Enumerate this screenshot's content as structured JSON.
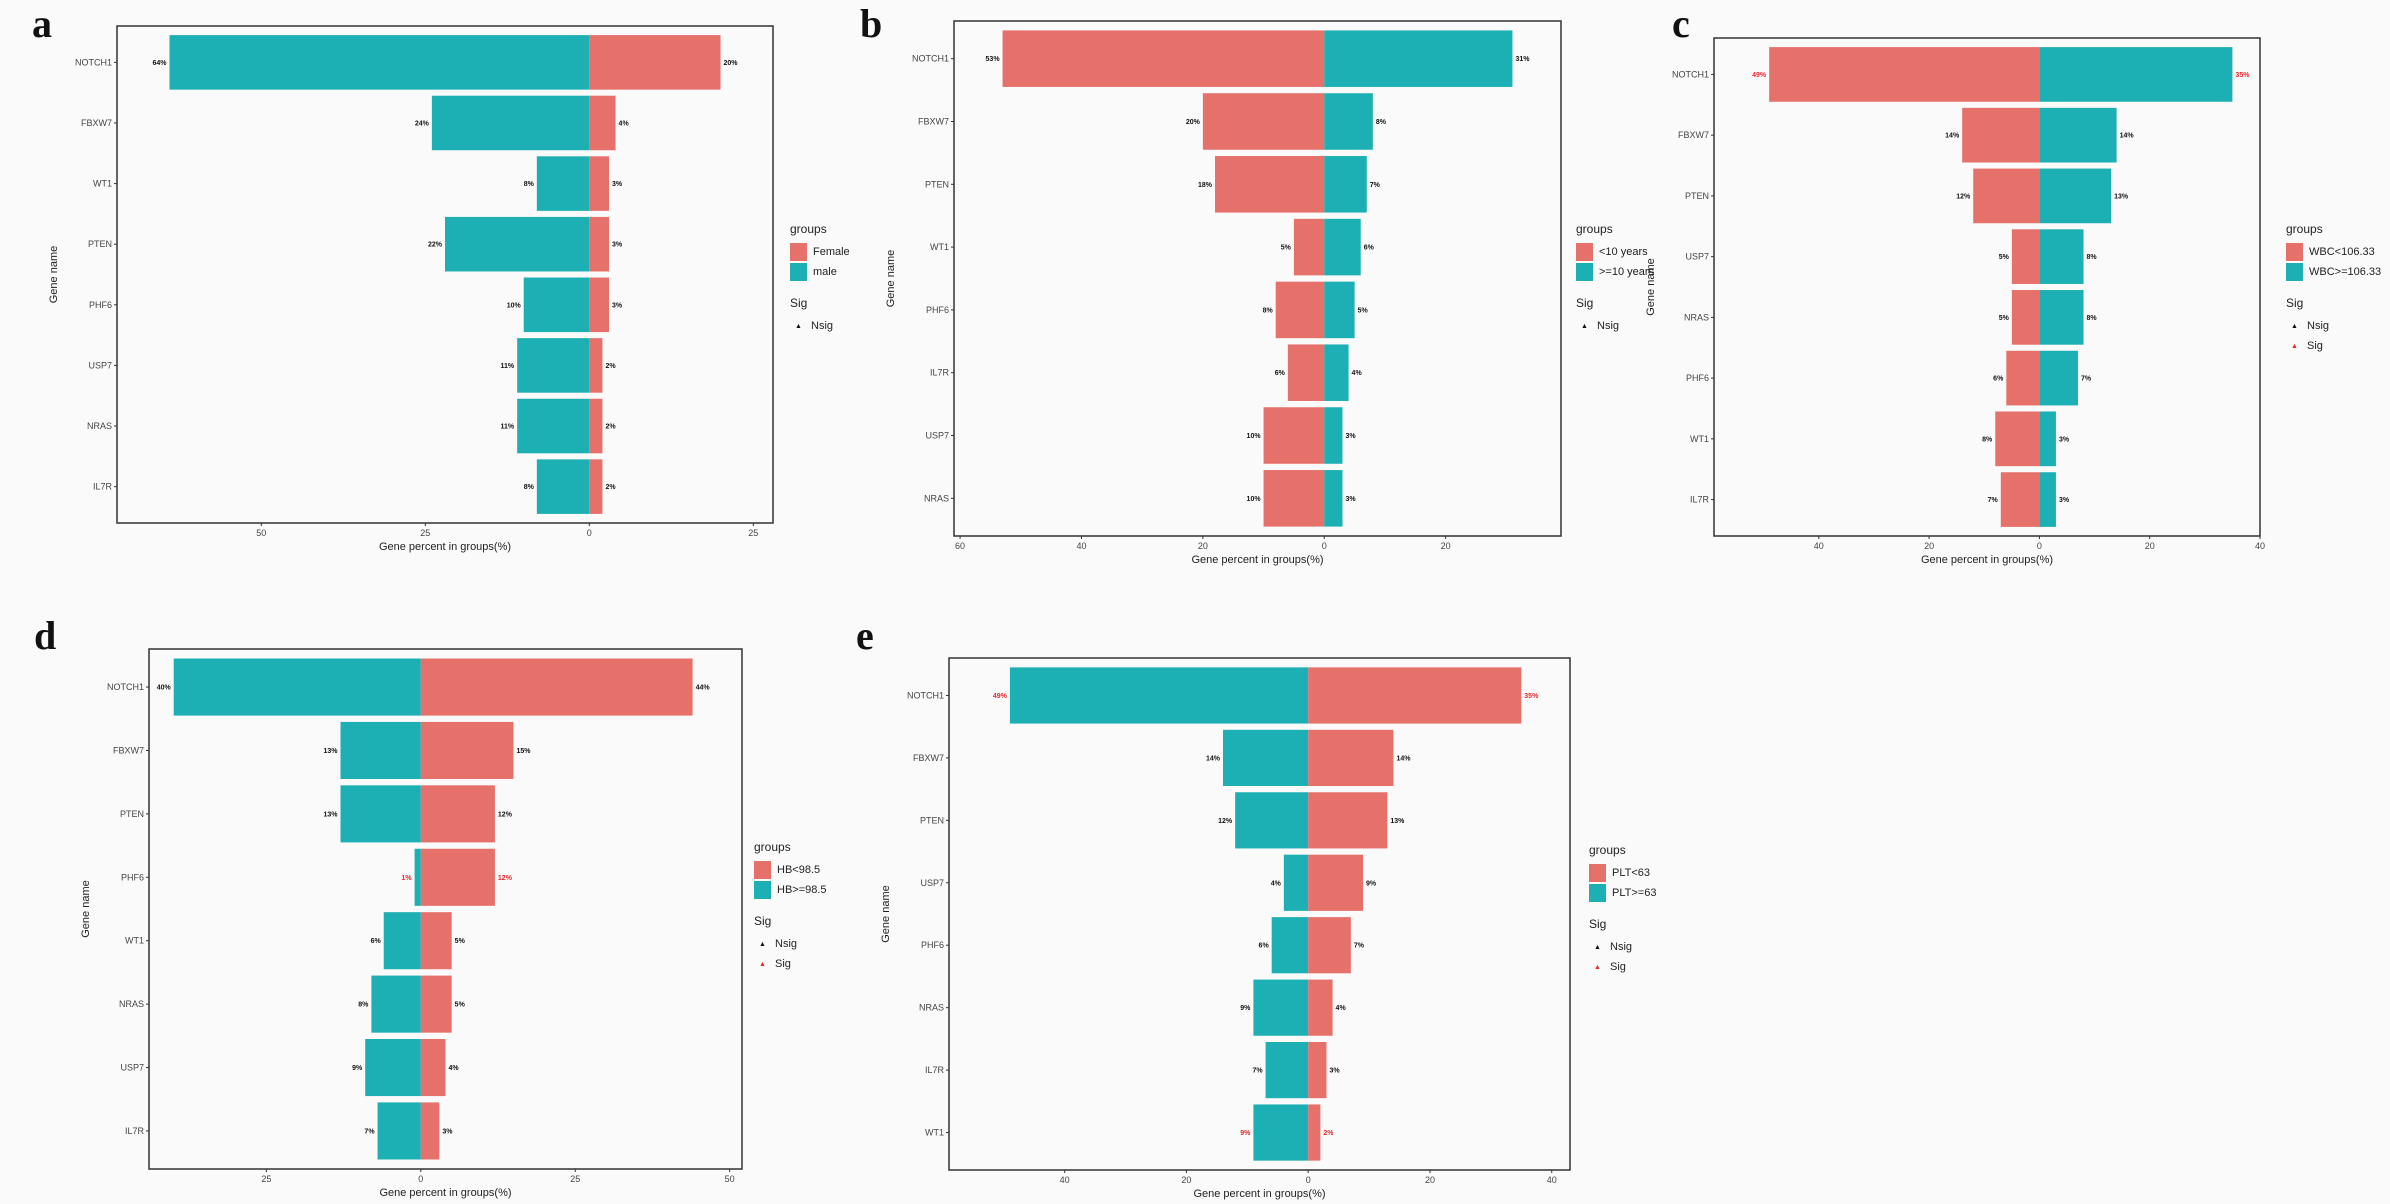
{
  "colors": {
    "red": "#e6706a",
    "teal": "#1cafb3",
    "sig_text": "#e8272b",
    "nsig_text": "#111111"
  },
  "chart_data": [
    {
      "type": "bar",
      "panel_label": "a",
      "xlabel": "Gene percent in groups(%)",
      "ylabel": "Gene name",
      "xlim": [
        -72,
        28
      ],
      "ticks": [
        -50,
        -25,
        0,
        25
      ],
      "tick_labels": [
        "50",
        "25",
        "0",
        "25"
      ],
      "left_group": {
        "name": "male",
        "color": "teal"
      },
      "right_group": {
        "name": "Female",
        "color": "red"
      },
      "legend": {
        "title": "groups",
        "items": [
          "Female",
          "male"
        ],
        "item_colors": [
          "red",
          "teal"
        ],
        "sig_title": "Sig",
        "sig_items": [
          "Nsig"
        ]
      },
      "genes": [
        {
          "name": "NOTCH1",
          "left": 64,
          "right": 20,
          "left_label": "64%",
          "right_label": "20%",
          "sig": false
        },
        {
          "name": "FBXW7",
          "left": 24,
          "right": 4,
          "left_label": "24%",
          "right_label": "4%",
          "sig": false
        },
        {
          "name": "WT1",
          "left": 8,
          "right": 3,
          "left_label": "8%",
          "right_label": "3%",
          "sig": false
        },
        {
          "name": "PTEN",
          "left": 22,
          "right": 3,
          "left_label": "22%",
          "right_label": "3%",
          "sig": false
        },
        {
          "name": "PHF6",
          "left": 10,
          "right": 3,
          "left_label": "10%",
          "right_label": "3%",
          "sig": false
        },
        {
          "name": "USP7",
          "left": 11,
          "right": 2,
          "left_label": "11%",
          "right_label": "2%",
          "sig": false
        },
        {
          "name": "NRAS",
          "left": 11,
          "right": 2,
          "left_label": "11%",
          "right_label": "2%",
          "sig": false
        },
        {
          "name": "IL7R",
          "left": 8,
          "right": 2,
          "left_label": "8%",
          "right_label": "2%",
          "sig": false
        }
      ]
    },
    {
      "type": "bar",
      "panel_label": "b",
      "xlabel": "Gene percent in groups(%)",
      "ylabel": "Gene name",
      "xlim": [
        -61,
        39
      ],
      "ticks": [
        -60,
        -40,
        -20,
        0,
        20
      ],
      "tick_labels": [
        "60",
        "40",
        "20",
        "0",
        "20"
      ],
      "left_group": {
        "name": "<10 years",
        "color": "red"
      },
      "right_group": {
        "name": ">=10 years",
        "color": "teal"
      },
      "legend": {
        "title": "groups",
        "items": [
          "<10 years",
          ">=10 years"
        ],
        "item_colors": [
          "red",
          "teal"
        ],
        "sig_title": "Sig",
        "sig_items": [
          "Nsig"
        ]
      },
      "genes": [
        {
          "name": "NOTCH1",
          "left": 53,
          "right": 31,
          "left_label": "53%",
          "right_label": "31%",
          "sig": false
        },
        {
          "name": "FBXW7",
          "left": 20,
          "right": 8,
          "left_label": "20%",
          "right_label": "8%",
          "sig": false
        },
        {
          "name": "PTEN",
          "left": 18,
          "right": 7,
          "left_label": "18%",
          "right_label": "7%",
          "sig": false
        },
        {
          "name": "WT1",
          "left": 5,
          "right": 6,
          "left_label": "5%",
          "right_label": "6%",
          "sig": false
        },
        {
          "name": "PHF6",
          "left": 8,
          "right": 5,
          "left_label": "8%",
          "right_label": "5%",
          "sig": false
        },
        {
          "name": "IL7R",
          "left": 6,
          "right": 4,
          "left_label": "6%",
          "right_label": "4%",
          "sig": false
        },
        {
          "name": "USP7",
          "left": 10,
          "right": 3,
          "left_label": "10%",
          "right_label": "3%",
          "sig": false
        },
        {
          "name": "NRAS",
          "left": 10,
          "right": 3,
          "left_label": "10%",
          "right_label": "3%",
          "sig": false
        }
      ]
    },
    {
      "type": "bar",
      "panel_label": "c",
      "xlabel": "Gene percent in groups(%)",
      "ylabel": "Gene name",
      "xlim": [
        -59,
        40
      ],
      "ticks": [
        -40,
        -20,
        0,
        20,
        40
      ],
      "tick_labels": [
        "40",
        "20",
        "0",
        "20",
        "40"
      ],
      "left_group": {
        "name": "WBC<106.33",
        "color": "red"
      },
      "right_group": {
        "name": "WBC>=106.33",
        "color": "teal"
      },
      "legend": {
        "title": "groups",
        "items": [
          "WBC<106.33",
          "WBC>=106.33"
        ],
        "item_colors": [
          "red",
          "teal"
        ],
        "sig_title": "Sig",
        "sig_items": [
          "Nsig",
          "Sig"
        ]
      },
      "genes": [
        {
          "name": "NOTCH1",
          "left": 49,
          "right": 35,
          "left_label": "49%",
          "right_label": "35%",
          "sig": true
        },
        {
          "name": "FBXW7",
          "left": 14,
          "right": 14,
          "left_label": "14%",
          "right_label": "14%",
          "sig": false
        },
        {
          "name": "PTEN",
          "left": 12,
          "right": 13,
          "left_label": "12%",
          "right_label": "13%",
          "sig": false
        },
        {
          "name": "USP7",
          "left": 5,
          "right": 8,
          "left_label": "5%",
          "right_label": "8%",
          "sig": false
        },
        {
          "name": "NRAS",
          "left": 5,
          "right": 8,
          "left_label": "5%",
          "right_label": "8%",
          "sig": false
        },
        {
          "name": "PHF6",
          "left": 6,
          "right": 7,
          "left_label": "6%",
          "right_label": "7%",
          "sig": false
        },
        {
          "name": "WT1",
          "left": 8,
          "right": 3,
          "left_label": "8%",
          "right_label": "3%",
          "sig": false
        },
        {
          "name": "IL7R",
          "left": 7,
          "right": 3,
          "left_label": "7%",
          "right_label": "3%",
          "sig": false
        }
      ]
    },
    {
      "type": "bar",
      "panel_label": "d",
      "xlabel": "Gene percent in groups(%)",
      "ylabel": "Gene name",
      "xlim": [
        -44,
        52
      ],
      "ticks": [
        -25,
        0,
        25,
        50
      ],
      "tick_labels": [
        "25",
        "0",
        "25",
        "50"
      ],
      "left_group": {
        "name": "HB>=98.5",
        "color": "teal"
      },
      "right_group": {
        "name": "HB<98.5",
        "color": "red"
      },
      "legend": {
        "title": "groups",
        "items": [
          "HB<98.5",
          "HB>=98.5"
        ],
        "item_colors": [
          "red",
          "teal"
        ],
        "sig_title": "Sig",
        "sig_items": [
          "Nsig",
          "Sig"
        ]
      },
      "genes": [
        {
          "name": "NOTCH1",
          "left": 40,
          "right": 44,
          "left_label": "40%",
          "right_label": "44%",
          "sig": false
        },
        {
          "name": "FBXW7",
          "left": 13,
          "right": 15,
          "left_label": "13%",
          "right_label": "15%",
          "sig": false
        },
        {
          "name": "PTEN",
          "left": 13,
          "right": 12,
          "left_label": "13%",
          "right_label": "12%",
          "sig": false
        },
        {
          "name": "PHF6",
          "left": 1,
          "right": 12,
          "left_label": "1%",
          "right_label": "12%",
          "sig": true
        },
        {
          "name": "WT1",
          "left": 6,
          "right": 5,
          "left_label": "6%",
          "right_label": "5%",
          "sig": false
        },
        {
          "name": "NRAS",
          "left": 8,
          "right": 5,
          "left_label": "8%",
          "right_label": "5%",
          "sig": false
        },
        {
          "name": "USP7",
          "left": 9,
          "right": 4,
          "left_label": "9%",
          "right_label": "4%",
          "sig": false
        },
        {
          "name": "IL7R",
          "left": 7,
          "right": 3,
          "left_label": "7%",
          "right_label": "3%",
          "sig": false
        }
      ]
    },
    {
      "type": "bar",
      "panel_label": "e",
      "xlabel": "Gene percent in groups(%)",
      "ylabel": "Gene name",
      "xlim": [
        -59,
        43
      ],
      "ticks": [
        -40,
        -20,
        0,
        20,
        40
      ],
      "tick_labels": [
        "40",
        "20",
        "0",
        "20",
        "40"
      ],
      "left_group": {
        "name": "PLT>=63",
        "color": "teal"
      },
      "right_group": {
        "name": "PLT<63",
        "color": "red"
      },
      "legend": {
        "title": "groups",
        "items": [
          "PLT<63",
          "PLT>=63"
        ],
        "item_colors": [
          "red",
          "teal"
        ],
        "sig_title": "Sig",
        "sig_items": [
          "Nsig",
          "Sig"
        ]
      },
      "genes": [
        {
          "name": "NOTCH1",
          "left": 49,
          "right": 35,
          "left_label": "49%",
          "right_label": "35%",
          "sig": true
        },
        {
          "name": "FBXW7",
          "left": 14,
          "right": 14,
          "left_label": "14%",
          "right_label": "14%",
          "sig": false
        },
        {
          "name": "PTEN",
          "left": 12,
          "right": 13,
          "left_label": "12%",
          "right_label": "13%",
          "sig": false
        },
        {
          "name": "USP7",
          "left": 4,
          "right": 9,
          "left_label": "4%",
          "right_label": "9%",
          "sig": false
        },
        {
          "name": "PHF6",
          "left": 6,
          "right": 7,
          "left_label": "6%",
          "right_label": "7%",
          "sig": false
        },
        {
          "name": "NRAS",
          "left": 9,
          "right": 4,
          "left_label": "9%",
          "right_label": "4%",
          "sig": false
        },
        {
          "name": "IL7R",
          "left": 7,
          "right": 3,
          "left_label": "7%",
          "right_label": "3%",
          "sig": false
        },
        {
          "name": "WT1",
          "left": 9,
          "right": 2,
          "left_label": "9%",
          "right_label": "2%",
          "sig": true
        }
      ]
    }
  ]
}
